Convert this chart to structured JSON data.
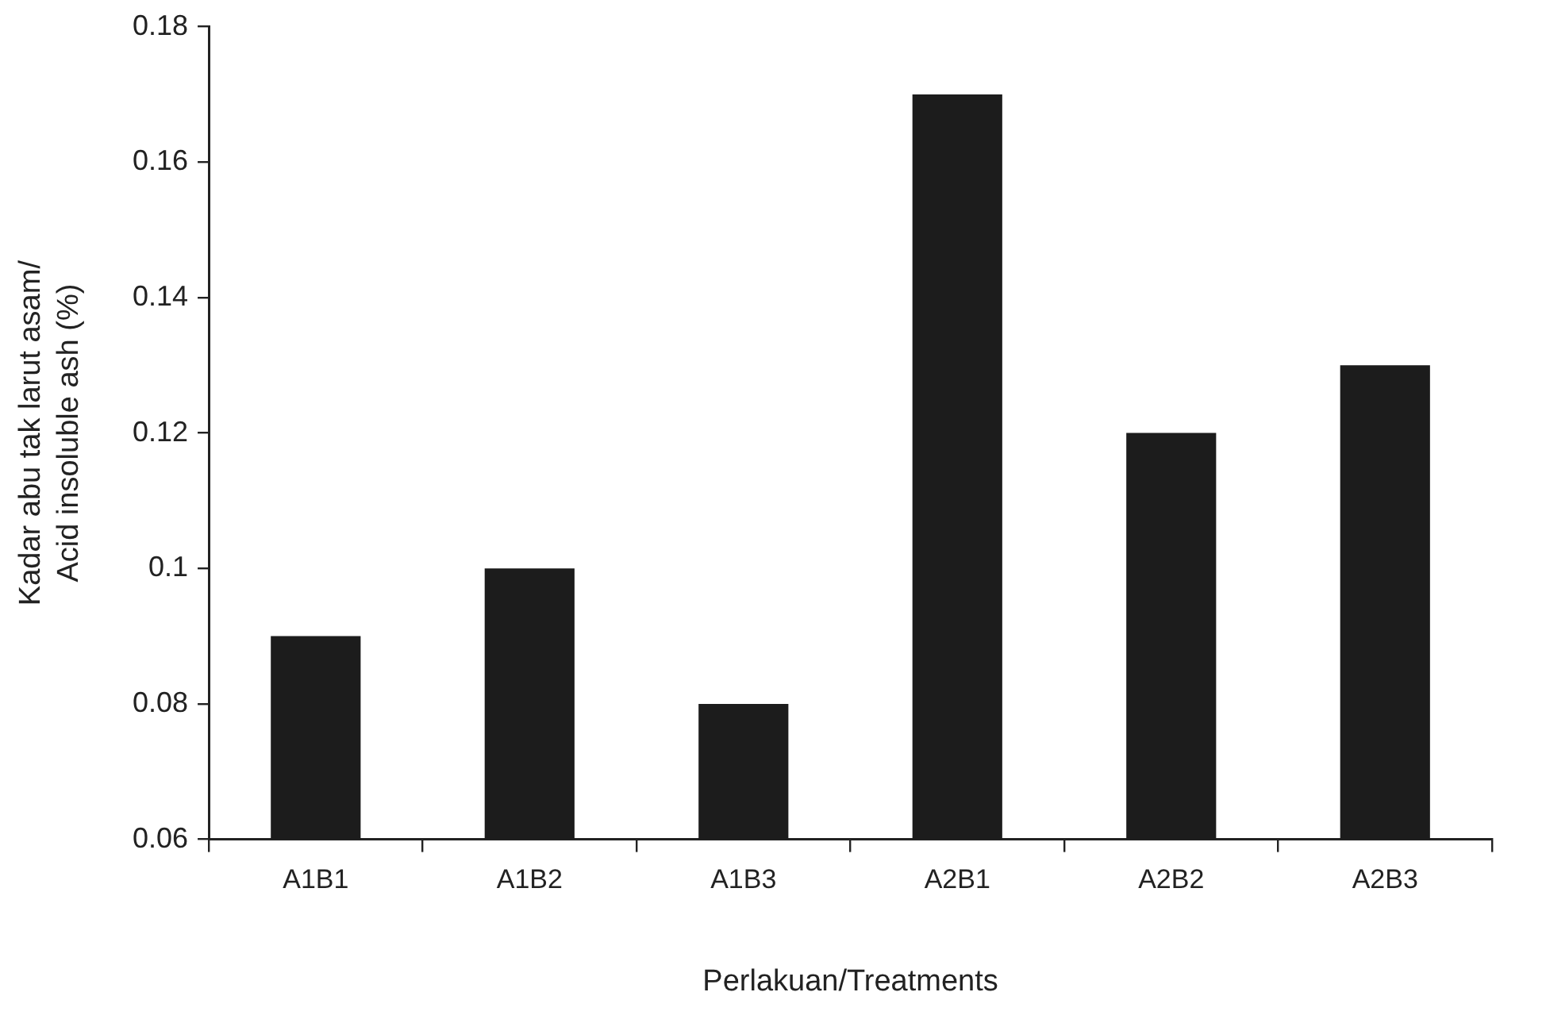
{
  "chart_data": {
    "type": "bar",
    "categories": [
      "A1B1",
      "A1B2",
      "A1B3",
      "A2B1",
      "A2B2",
      "A2B3"
    ],
    "values": [
      0.09,
      0.1,
      0.08,
      0.17,
      0.12,
      0.13
    ],
    "color": "#1c1c1c",
    "xlabel": "Perlakuan/Treatments",
    "ylabel": "Kadar abu tak larut asam/Acid insoluble ash (%)",
    "ylim": [
      0.06,
      0.18
    ],
    "yticks": [
      0.06,
      0.08,
      0.1,
      0.12,
      0.14,
      0.16,
      0.18
    ]
  }
}
